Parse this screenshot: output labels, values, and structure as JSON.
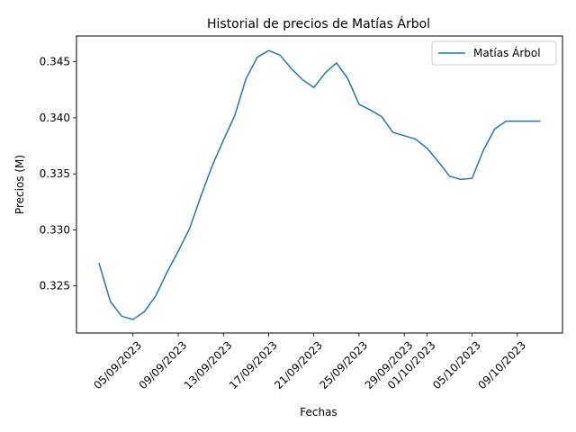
{
  "chart_data": {
    "type": "line",
    "title": "Historial de precios de Matías Árbol",
    "xlabel": "Fechas",
    "ylabel": "Precios (M)",
    "legend_position": "top-right",
    "grid": false,
    "line_color": "#1f77b4",
    "xlim": [
      "2023-08-31",
      "2023-10-13"
    ],
    "ylim": [
      0.3208,
      0.3473
    ],
    "x_ticks": [
      "2023-09-05",
      "2023-09-09",
      "2023-09-13",
      "2023-09-17",
      "2023-09-21",
      "2023-09-25",
      "2023-09-29",
      "2023-10-01",
      "2023-10-05",
      "2023-10-09"
    ],
    "x_tick_labels": [
      "05/09/2023",
      "09/09/2023",
      "13/09/2023",
      "17/09/2023",
      "21/09/2023",
      "25/09/2023",
      "29/09/2023",
      "01/10/2023",
      "05/10/2023",
      "09/10/2023"
    ],
    "y_ticks": [
      0.325,
      0.33,
      0.335,
      0.34,
      0.345
    ],
    "y_tick_labels": [
      "0.325",
      "0.330",
      "0.335",
      "0.340",
      "0.345"
    ],
    "series": [
      {
        "name": "Matías Árbol",
        "x": [
          "2023-09-02",
          "2023-09-03",
          "2023-09-04",
          "2023-09-05",
          "2023-09-06",
          "2023-09-07",
          "2023-09-08",
          "2023-09-09",
          "2023-09-10",
          "2023-09-11",
          "2023-09-12",
          "2023-09-13",
          "2023-09-14",
          "2023-09-15",
          "2023-09-16",
          "2023-09-17",
          "2023-09-18",
          "2023-09-19",
          "2023-09-20",
          "2023-09-21",
          "2023-09-22",
          "2023-09-23",
          "2023-09-24",
          "2023-09-25",
          "2023-09-26",
          "2023-09-27",
          "2023-09-28",
          "2023-09-29",
          "2023-09-30",
          "2023-10-01",
          "2023-10-02",
          "2023-10-03",
          "2023-10-04",
          "2023-10-05",
          "2023-10-06",
          "2023-10-07",
          "2023-10-08",
          "2023-10-09",
          "2023-10-10",
          "2023-10-11"
        ],
        "values": [
          0.327,
          0.3236,
          0.3223,
          0.322,
          0.3227,
          0.3241,
          0.3262,
          0.3281,
          0.3301,
          0.333,
          0.3357,
          0.338,
          0.3402,
          0.3435,
          0.3454,
          0.346,
          0.3456,
          0.3444,
          0.3434,
          0.3427,
          0.344,
          0.3449,
          0.3435,
          0.3412,
          0.3407,
          0.3401,
          0.3387,
          0.3384,
          0.3381,
          0.3373,
          0.3361,
          0.3348,
          0.3345,
          0.3346,
          0.3371,
          0.339,
          0.3397,
          0.3397,
          0.3397,
          0.3397
        ]
      }
    ]
  }
}
